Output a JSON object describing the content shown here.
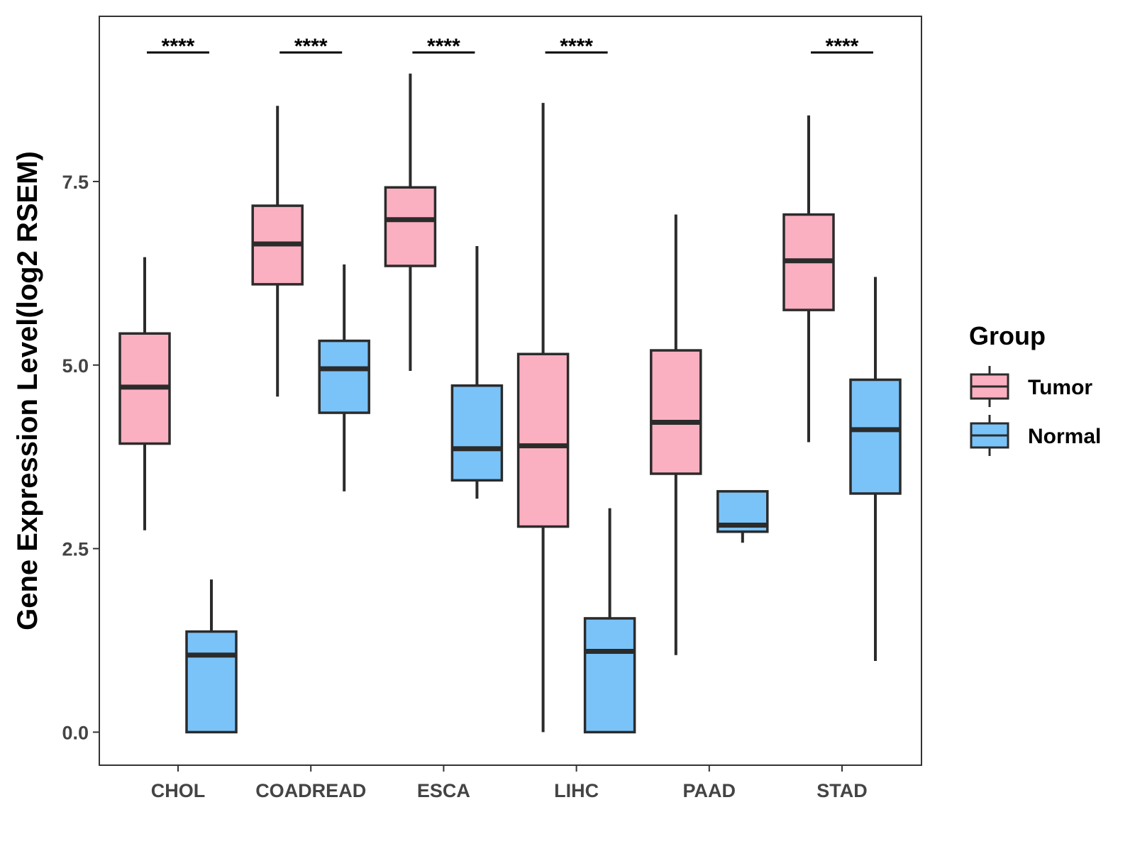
{
  "chart_data": {
    "type": "boxplot",
    "title": "",
    "xlabel": "",
    "ylabel": "Gene Expression Level(log2 RSEM)",
    "ylim": [
      -0.45,
      9.75
    ],
    "yticks": [
      0.0,
      2.5,
      5.0,
      7.5
    ],
    "ytick_labels": [
      "0.0",
      "2.5",
      "5.0",
      "7.5"
    ],
    "categories": [
      "CHOL",
      "COADREAD",
      "ESCA",
      "LIHC",
      "PAAD",
      "STAD"
    ],
    "grid": false,
    "legend": {
      "title": "Group",
      "position": "right"
    },
    "series": [
      {
        "name": "Tumor",
        "color": "#FAB0C1",
        "boxes": [
          {
            "whisker_low": 2.75,
            "q1": 3.93,
            "median": 4.7,
            "q3": 5.43,
            "whisker_high": 6.47
          },
          {
            "whisker_low": 4.57,
            "q1": 6.1,
            "median": 6.65,
            "q3": 7.17,
            "whisker_high": 8.53
          },
          {
            "whisker_low": 4.92,
            "q1": 6.35,
            "median": 6.98,
            "q3": 7.42,
            "whisker_high": 8.97
          },
          {
            "whisker_low": 0.0,
            "q1": 2.8,
            "median": 3.9,
            "q3": 5.15,
            "whisker_high": 8.57
          },
          {
            "whisker_low": 1.05,
            "q1": 3.52,
            "median": 4.22,
            "q3": 5.2,
            "whisker_high": 7.05
          },
          {
            "whisker_low": 3.95,
            "q1": 5.75,
            "median": 6.42,
            "q3": 7.05,
            "whisker_high": 8.4
          }
        ]
      },
      {
        "name": "Normal",
        "color": "#7AC3F9",
        "boxes": [
          {
            "whisker_low": 0.0,
            "q1": 0.0,
            "median": 1.05,
            "q3": 1.37,
            "whisker_high": 2.08
          },
          {
            "whisker_low": 3.28,
            "q1": 4.35,
            "median": 4.95,
            "q3": 5.33,
            "whisker_high": 6.37
          },
          {
            "whisker_low": 3.18,
            "q1": 3.43,
            "median": 3.86,
            "q3": 4.72,
            "whisker_high": 6.62
          },
          {
            "whisker_low": 0.0,
            "q1": 0.0,
            "median": 1.1,
            "q3": 1.55,
            "whisker_high": 3.05
          },
          {
            "whisker_low": 2.58,
            "q1": 2.73,
            "median": 2.82,
            "q3": 3.28,
            "whisker_high": 3.28
          },
          {
            "whisker_low": 0.97,
            "q1": 3.25,
            "median": 4.12,
            "q3": 4.8,
            "whisker_high": 6.2
          }
        ]
      }
    ],
    "significance": [
      "****",
      "****",
      "****",
      "****",
      "",
      "****"
    ]
  }
}
